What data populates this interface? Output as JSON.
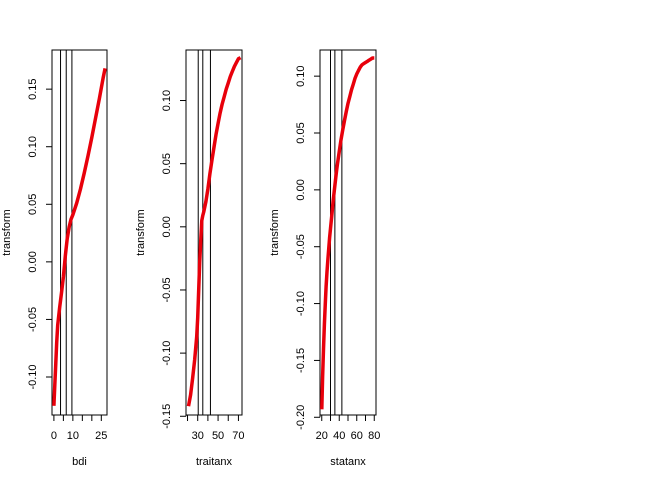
{
  "colors": {
    "curve": "#e8000b",
    "axis": "#000000",
    "background": "#ffffff"
  },
  "chart_data": [
    {
      "type": "line",
      "title": "",
      "xlabel": "bdi",
      "ylabel": "transform",
      "xlim": [
        -1,
        28
      ],
      "ylim": [
        -0.133,
        0.184
      ],
      "xticks": [
        0,
        5,
        10,
        15,
        20,
        25
      ],
      "xtick_labels": [
        "0",
        "",
        "10",
        "",
        "",
        "25"
      ],
      "yticks": [
        -0.1,
        -0.05,
        0,
        0.05,
        0.1,
        0.15
      ],
      "ytick_labels": [
        "-0.10",
        "-0.05",
        "0.00",
        "0.05",
        "0.10",
        "0.15"
      ],
      "vlines": [
        3.5,
        6.5,
        9.5
      ],
      "grid": false,
      "series": [
        {
          "x": [
            0,
            0.5,
            1,
            1.5,
            2,
            3,
            4,
            5,
            6,
            7,
            8,
            9,
            10,
            12,
            14,
            16,
            18,
            20,
            22,
            24,
            26,
            27
          ],
          "y": [
            -0.125,
            -0.107,
            -0.088,
            -0.07,
            -0.055,
            -0.04,
            -0.027,
            -0.013,
            0.005,
            0.02,
            0.03,
            0.037,
            0.041,
            0.051,
            0.063,
            0.077,
            0.092,
            0.108,
            0.125,
            0.142,
            0.16,
            0.168
          ]
        }
      ]
    },
    {
      "type": "line",
      "title": "",
      "xlabel": "traitanx",
      "ylabel": "transform",
      "xlim": [
        18.5,
        73.5
      ],
      "ylim": [
        -0.149,
        0.14
      ],
      "xticks": [
        20,
        30,
        40,
        50,
        60,
        70
      ],
      "xtick_labels": [
        "",
        "30",
        "",
        "50",
        "",
        "70"
      ],
      "yticks": [
        -0.15,
        -0.1,
        -0.05,
        0,
        0.05,
        0.1
      ],
      "ytick_labels": [
        "-0.15",
        "-0.10",
        "-0.05",
        "0.00",
        "0.05",
        "0.10"
      ],
      "vlines": [
        30.5,
        35,
        42.5
      ],
      "grid": false,
      "series": [
        {
          "x": [
            21,
            23,
            25,
            27,
            29,
            30,
            31,
            32,
            33,
            34,
            35,
            36,
            38,
            40,
            42,
            44,
            46,
            48,
            50,
            52,
            54,
            56,
            58,
            60,
            62,
            64,
            66,
            68,
            70,
            72
          ],
          "y": [
            -0.142,
            -0.133,
            -0.12,
            -0.105,
            -0.087,
            -0.072,
            -0.05,
            -0.028,
            -0.01,
            0.005,
            0.009,
            0.012,
            0.02,
            0.03,
            0.042,
            0.053,
            0.063,
            0.073,
            0.082,
            0.09,
            0.097,
            0.103,
            0.109,
            0.114,
            0.119,
            0.123,
            0.127,
            0.13,
            0.133,
            0.134
          ]
        }
      ]
    },
    {
      "type": "line",
      "title": "",
      "xlabel": "statanx",
      "ylabel": "transform",
      "xlim": [
        18,
        82
      ],
      "ylim": [
        -0.198,
        0.123
      ],
      "xticks": [
        20,
        30,
        40,
        50,
        60,
        70,
        80
      ],
      "xtick_labels": [
        "20",
        "",
        "40",
        "",
        "60",
        "",
        "80"
      ],
      "yticks": [
        -0.2,
        -0.15,
        -0.1,
        -0.05,
        0,
        0.05,
        0.1
      ],
      "ytick_labels": [
        "-0.20",
        "-0.15",
        "-0.10",
        "-0.05",
        "0.00",
        "0.05",
        "0.10"
      ],
      "vlines": [
        30,
        35,
        43
      ],
      "grid": false,
      "series": [
        {
          "x": [
            20,
            21,
            22,
            23,
            24,
            25,
            26,
            27,
            28,
            29,
            30,
            31,
            32,
            33,
            34,
            35,
            36,
            37,
            38,
            40,
            42,
            44,
            46,
            48,
            50,
            52,
            54,
            56,
            58,
            60,
            62,
            64,
            66,
            68,
            70,
            72,
            74,
            76,
            78,
            80
          ],
          "y": [
            -0.193,
            -0.165,
            -0.14,
            -0.118,
            -0.1,
            -0.085,
            -0.072,
            -0.061,
            -0.051,
            -0.042,
            -0.034,
            -0.026,
            -0.018,
            -0.01,
            -0.003,
            0.004,
            0.011,
            0.017,
            0.023,
            0.034,
            0.044,
            0.053,
            0.061,
            0.069,
            0.076,
            0.082,
            0.088,
            0.093,
            0.098,
            0.102,
            0.105,
            0.108,
            0.11,
            0.111,
            0.112,
            0.113,
            0.114,
            0.115,
            0.116,
            0.116
          ]
        }
      ]
    }
  ]
}
